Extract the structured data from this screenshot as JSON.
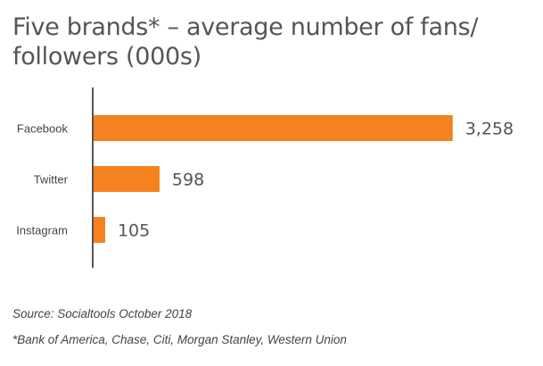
{
  "chart_data": {
    "type": "bar",
    "orientation": "horizontal",
    "title": "Five brands* – average number of fans/ followers (000s)",
    "categories": [
      "Facebook",
      "Twitter",
      "Instagram"
    ],
    "values": [
      3258,
      598,
      105
    ],
    "value_labels": [
      "3,258",
      "598",
      "105"
    ],
    "xlim": [
      0,
      3600
    ],
    "bar_color": "#f5821f",
    "axis_color": "#555555",
    "grid": false,
    "legend": "none"
  },
  "notes": {
    "source": "Source: Socialtools October 2018",
    "footnote": "*Bank of America, Chase, Citi, Morgan Stanley, Western Union"
  }
}
